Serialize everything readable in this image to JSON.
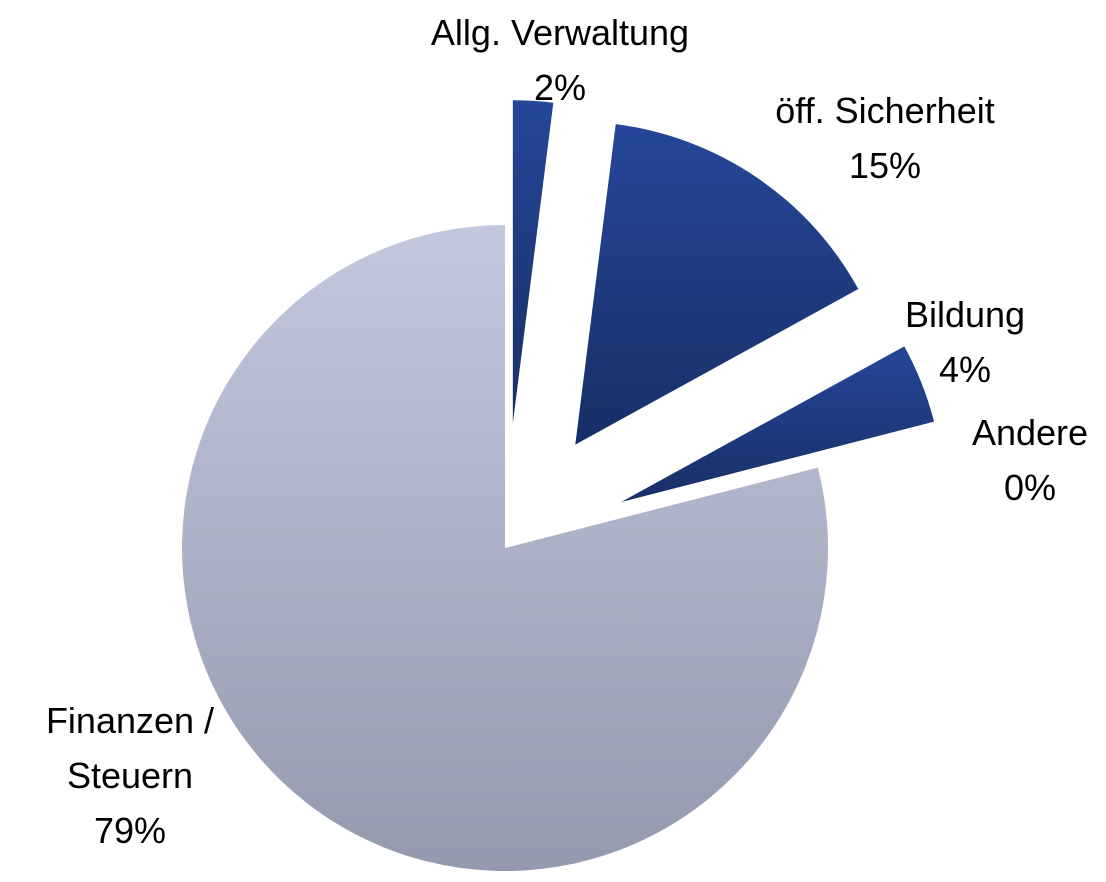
{
  "chart_data": {
    "type": "pie",
    "categories": [
      "Allg. Verwaltung",
      "öff. Sicherheit",
      "Bildung",
      "Andere",
      "Finanzen / Steuern"
    ],
    "values": [
      2,
      15,
      4,
      0,
      79
    ],
    "value_labels": [
      "2%",
      "15%",
      "4%",
      "0%",
      "79%"
    ],
    "colors": [
      "#1f3d80",
      "#1f3d80",
      "#2446a0",
      "#8c97c8",
      "#b3b7cc"
    ]
  }
}
